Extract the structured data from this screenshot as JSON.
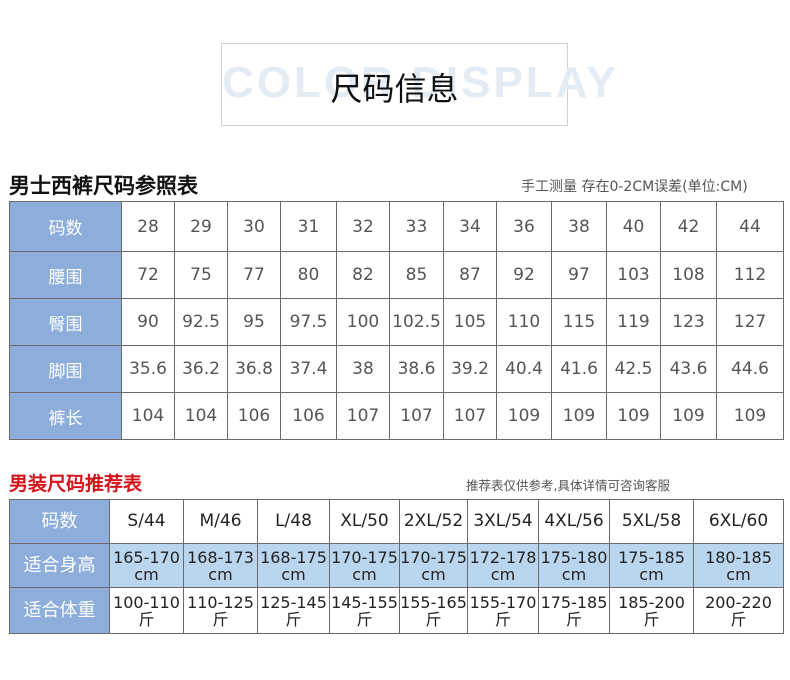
{
  "header": {
    "bg_text": "COLOR DISPLAY",
    "title": "尺码信息"
  },
  "size_table": {
    "title": "男士西裤尺码参照表",
    "note": "手工测量 存在0-2CM误差(单位:CM)",
    "rows": [
      {
        "label": "码数",
        "cells": [
          "28",
          "29",
          "30",
          "31",
          "32",
          "33",
          "34",
          "36",
          "38",
          "40",
          "42",
          "44"
        ]
      },
      {
        "label": "腰围",
        "cells": [
          "72",
          "75",
          "77",
          "80",
          "82",
          "85",
          "87",
          "92",
          "97",
          "103",
          "108",
          "112"
        ]
      },
      {
        "label": "臀围",
        "cells": [
          "90",
          "92.5",
          "95",
          "97.5",
          "100",
          "102.5",
          "105",
          "110",
          "115",
          "119",
          "123",
          "127"
        ]
      },
      {
        "label": "脚围",
        "cells": [
          "35.6",
          "36.2",
          "36.8",
          "37.4",
          "38",
          "38.6",
          "39.2",
          "40.4",
          "41.6",
          "42.5",
          "43.6",
          "44.6"
        ]
      },
      {
        "label": "裤长",
        "cells": [
          "104",
          "104",
          "106",
          "106",
          "107",
          "107",
          "107",
          "109",
          "109",
          "109",
          "109",
          "109"
        ]
      }
    ]
  },
  "recommend_table": {
    "title": "男装尺码推荐表",
    "note": "推荐表仅供参考,具体详情可咨询客服",
    "rows": [
      {
        "label": "码数",
        "cells": [
          [
            "S/44",
            ""
          ],
          [
            "M/46",
            ""
          ],
          [
            "L/48",
            ""
          ],
          [
            "XL/50",
            ""
          ],
          [
            "2XL/52",
            ""
          ],
          [
            "3XL/54",
            ""
          ],
          [
            "4XL/56",
            ""
          ],
          [
            "5XL/58",
            ""
          ],
          [
            "6XL/60",
            ""
          ]
        ]
      },
      {
        "label": "适合身高",
        "cells": [
          [
            "165-170",
            "cm"
          ],
          [
            "168-173",
            "cm"
          ],
          [
            "168-175",
            "cm"
          ],
          [
            "170-175",
            "cm"
          ],
          [
            "170-175",
            "cm"
          ],
          [
            "172-178",
            "cm"
          ],
          [
            "175-180",
            "cm"
          ],
          [
            "175-185",
            "cm"
          ],
          [
            "180-185",
            "cm"
          ]
        ]
      },
      {
        "label": "适合体重",
        "cells": [
          [
            "100-110",
            "斤"
          ],
          [
            "110-125",
            "斤"
          ],
          [
            "125-145",
            "斤"
          ],
          [
            "145-155",
            "斤"
          ],
          [
            "155-165",
            "斤"
          ],
          [
            "155-170",
            "斤"
          ],
          [
            "175-185",
            "斤"
          ],
          [
            "185-200",
            "斤"
          ],
          [
            "200-220",
            "斤"
          ]
        ]
      }
    ]
  },
  "colors": {
    "header_cell": "#8daedb",
    "highlight_row": "#bad6ee",
    "red_title": "#d3121b",
    "watermark": "#e3ebf4"
  }
}
